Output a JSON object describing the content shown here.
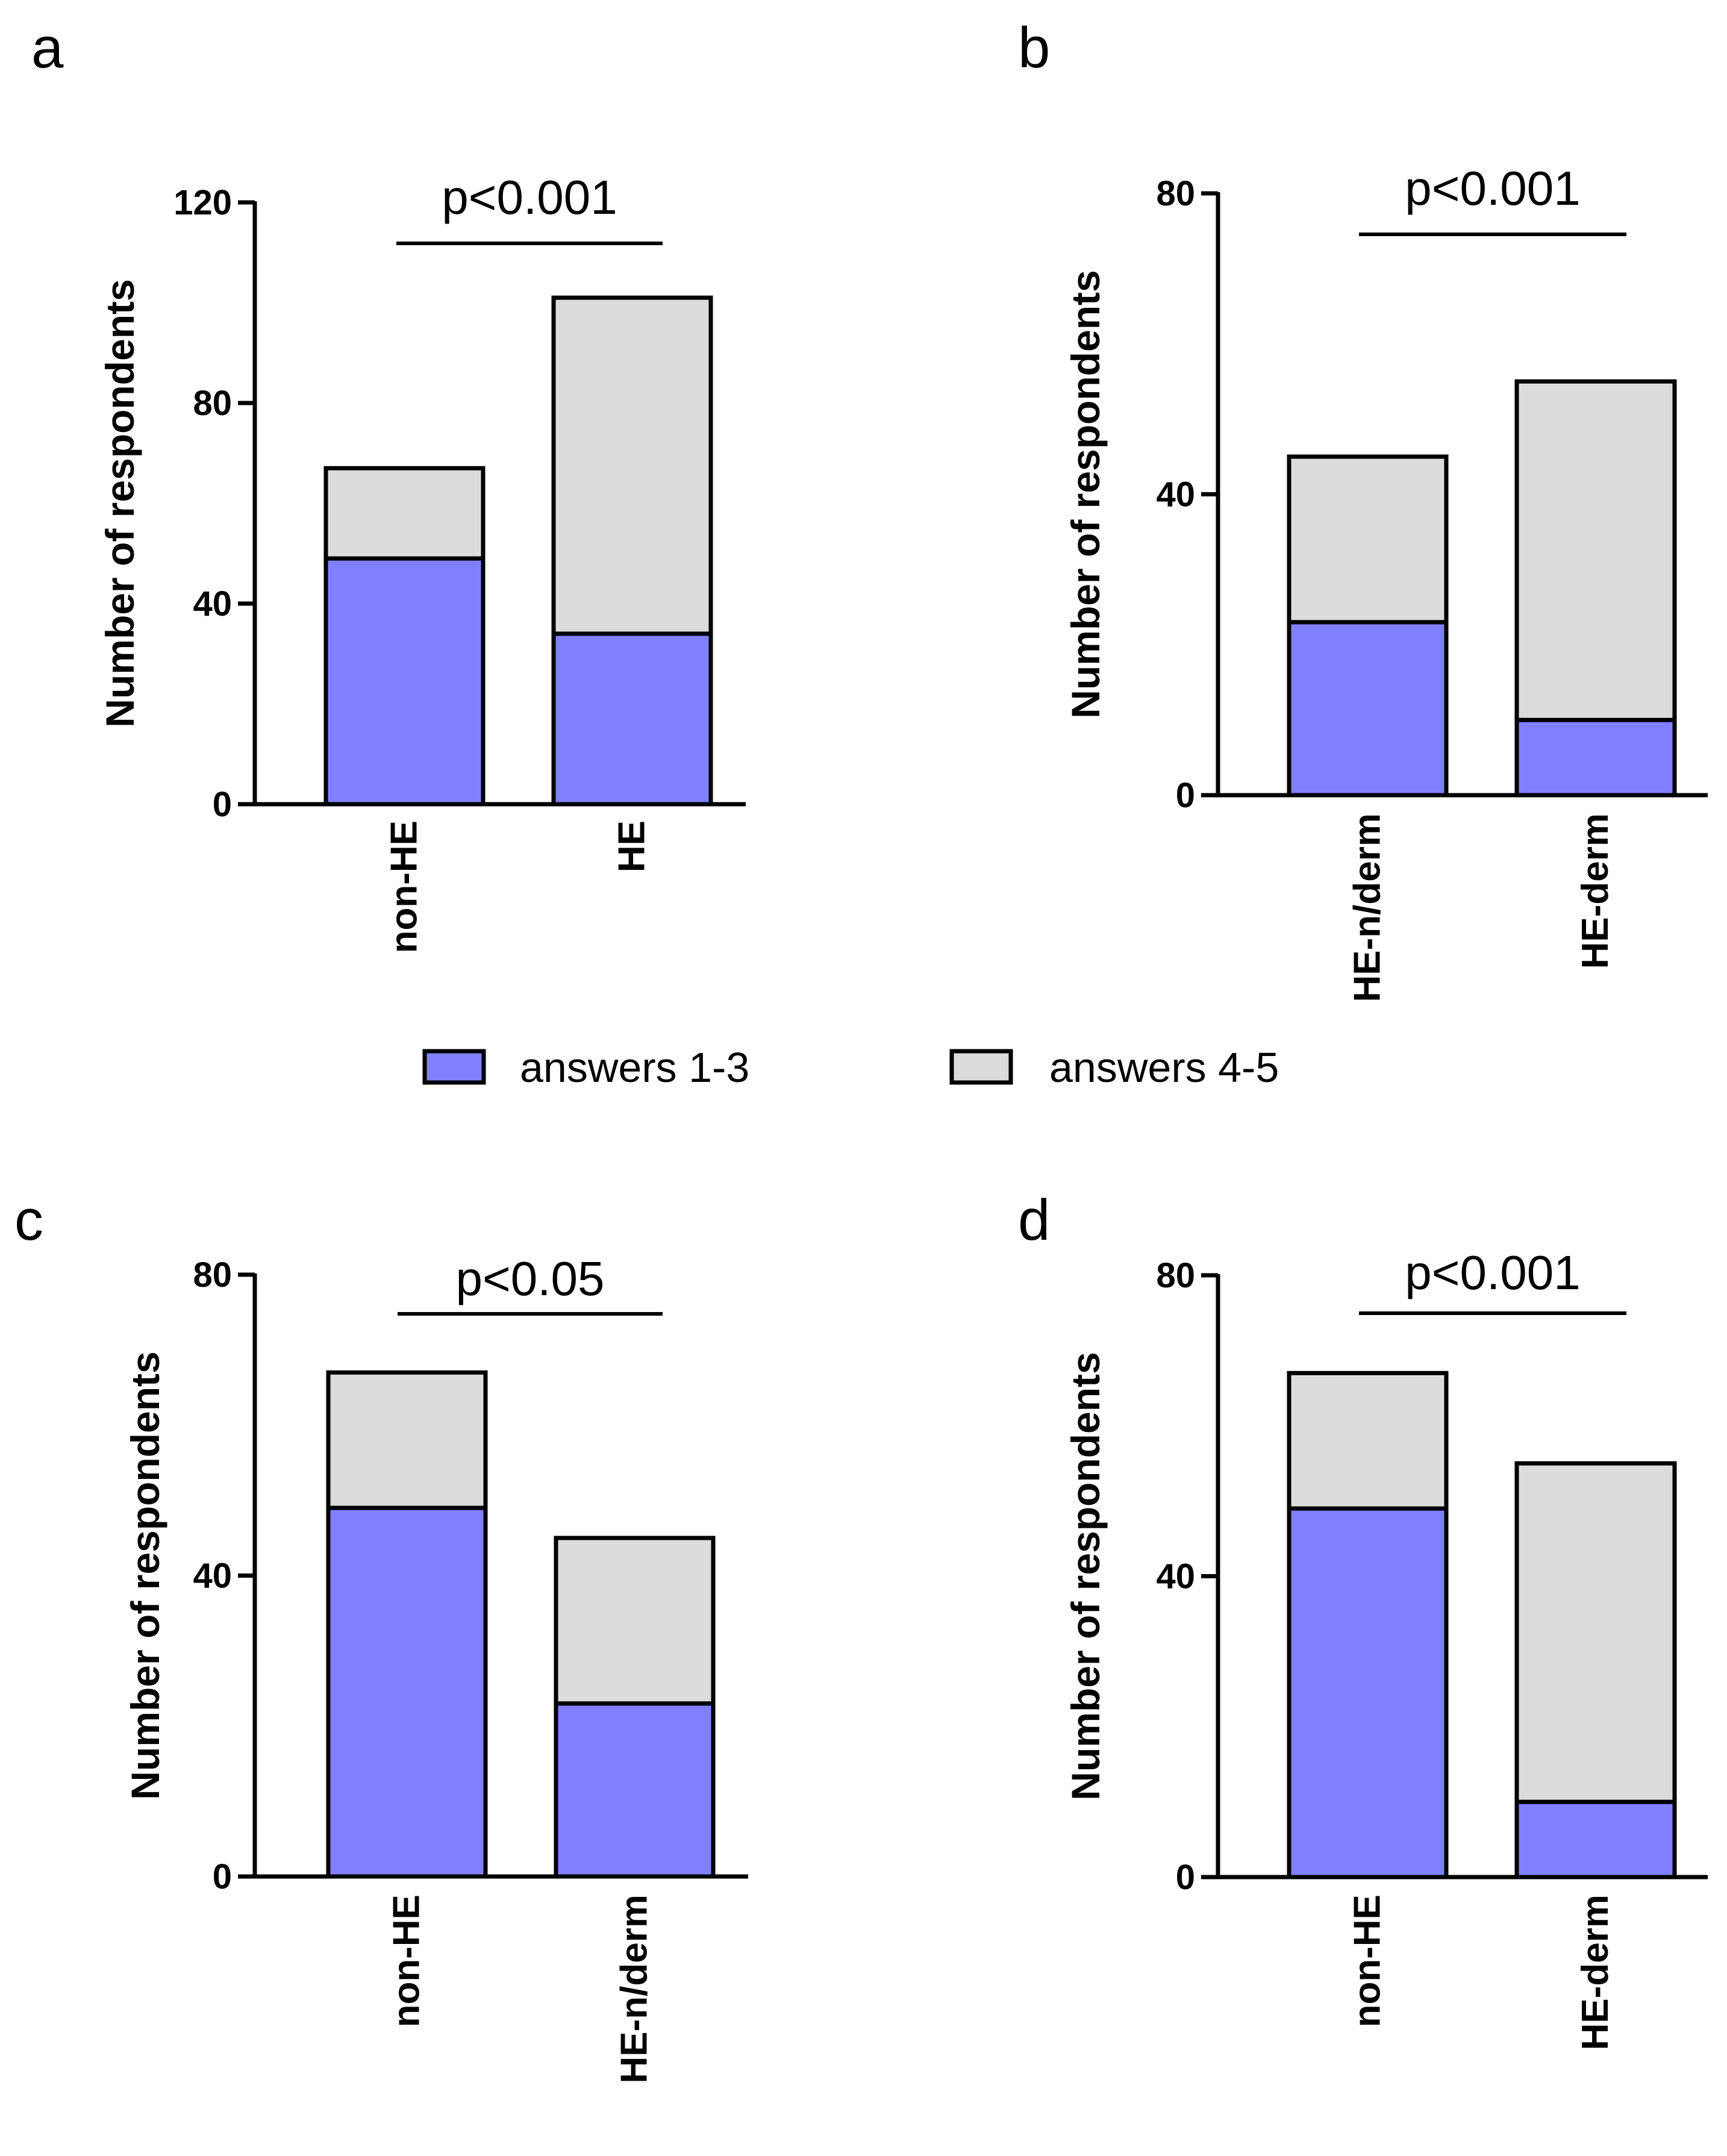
{
  "colors": {
    "answers_1_3": "#8080ff",
    "answers_4_5": "#dcdcdc",
    "axis": "#000000"
  },
  "legend": {
    "items": [
      {
        "label": "answers 1-3",
        "color": "#8080ff"
      },
      {
        "label": "answers 4-5",
        "color": "#dcdcdc"
      }
    ]
  },
  "chart_data": [
    {
      "panel": "a",
      "type": "bar",
      "stacked": true,
      "ylabel": "Number of respondents",
      "ylim": [
        0,
        120
      ],
      "yticks": [
        0,
        40,
        80,
        120
      ],
      "categories": [
        "non-HE",
        "HE"
      ],
      "series": [
        {
          "name": "answers 1-3",
          "values": [
            49,
            34
          ]
        },
        {
          "name": "answers 4-5",
          "values": [
            18,
            67
          ]
        }
      ],
      "totals": [
        67,
        101
      ],
      "significance": "p<0.001"
    },
    {
      "panel": "b",
      "type": "bar",
      "stacked": true,
      "ylabel": "Number of respondents",
      "ylim": [
        0,
        80
      ],
      "yticks": [
        0,
        40,
        80
      ],
      "categories": [
        "HE-n/derm",
        "HE-derm"
      ],
      "series": [
        {
          "name": "answers 1-3",
          "values": [
            23,
            10
          ]
        },
        {
          "name": "answers 4-5",
          "values": [
            22,
            45
          ]
        }
      ],
      "totals": [
        45,
        55
      ],
      "significance": "p<0.001"
    },
    {
      "panel": "c",
      "type": "bar",
      "stacked": true,
      "ylabel": "Number of respondents",
      "ylim": [
        0,
        80
      ],
      "yticks": [
        0,
        40,
        80
      ],
      "categories": [
        "non-HE",
        "HE-n/derm"
      ],
      "series": [
        {
          "name": "answers 1-3",
          "values": [
            49,
            23
          ]
        },
        {
          "name": "answers 4-5",
          "values": [
            18,
            22
          ]
        }
      ],
      "totals": [
        67,
        45
      ],
      "significance": "p<0.05"
    },
    {
      "panel": "d",
      "type": "bar",
      "stacked": true,
      "ylabel": "Number of respondents",
      "ylim": [
        0,
        80
      ],
      "yticks": [
        0,
        40,
        80
      ],
      "categories": [
        "non-HE",
        "HE-derm"
      ],
      "series": [
        {
          "name": "answers 1-3",
          "values": [
            49,
            10
          ]
        },
        {
          "name": "answers 4-5",
          "values": [
            18,
            45
          ]
        }
      ],
      "totals": [
        67,
        55
      ],
      "significance": "p<0.001"
    }
  ]
}
